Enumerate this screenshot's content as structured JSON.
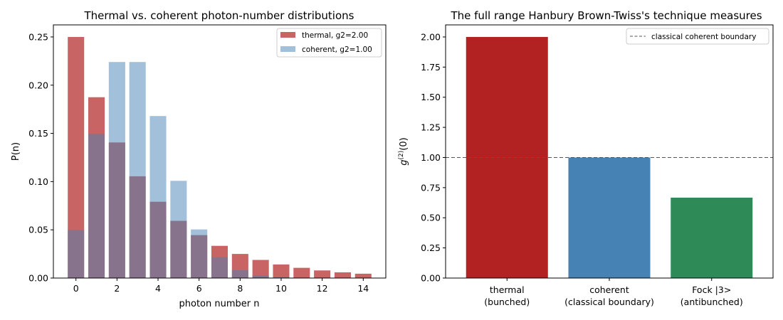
{
  "chart_data": [
    {
      "type": "bar",
      "title": "Thermal vs. coherent photon-number distributions",
      "xlabel": "photon number n",
      "ylabel": "P(n)",
      "xlim": [
        -1.1,
        15.1
      ],
      "ylim": [
        0,
        0.2625
      ],
      "xticks": [
        0,
        2,
        4,
        6,
        8,
        10,
        12,
        14
      ],
      "xtick_labels": [
        "0",
        "2",
        "4",
        "6",
        "8",
        "10",
        "12",
        "14"
      ],
      "yticks": [
        0,
        0.05,
        0.1,
        0.15,
        0.2,
        0.25
      ],
      "ytick_labels": [
        "0.00",
        "0.05",
        "0.10",
        "0.15",
        "0.20",
        "0.25"
      ],
      "x": [
        0,
        1,
        2,
        3,
        4,
        5,
        6,
        7,
        8,
        9,
        10,
        11,
        12,
        13,
        14
      ],
      "legend_position": "top-right",
      "series": [
        {
          "name": "thermal, g2=2.00",
          "color": "#b22222",
          "values": [
            0.25,
            0.1875,
            0.1406,
            0.1055,
            0.0791,
            0.0593,
            0.0445,
            0.0334,
            0.025,
            0.0188,
            0.0141,
            0.0106,
            0.0079,
            0.0059,
            0.0045
          ]
        },
        {
          "name": "coherent, g2=1.00",
          "color": "#4682b4",
          "values": [
            0.0498,
            0.1494,
            0.224,
            0.224,
            0.168,
            0.1008,
            0.0504,
            0.0216,
            0.0081,
            0.0027,
            0.0008,
            0.0002,
            0.0001,
            0.0,
            0.0
          ]
        }
      ]
    },
    {
      "type": "bar",
      "title": "The full range Hanbury Brown-Twiss's technique measures",
      "ylabel": "g(2)(0)",
      "ylabel_parts": {
        "base": "g",
        "sup": "(2)",
        "tail": "(0)"
      },
      "ylim": [
        0,
        2.1
      ],
      "yticks": [
        0,
        0.25,
        0.5,
        0.75,
        1.0,
        1.25,
        1.5,
        1.75,
        2.0
      ],
      "ytick_labels": [
        "0.00",
        "0.25",
        "0.50",
        "0.75",
        "1.00",
        "1.25",
        "1.50",
        "1.75",
        "2.00"
      ],
      "categories": [
        [
          "thermal",
          "(bunched)"
        ],
        [
          "coherent",
          "(classical boundary)"
        ],
        [
          "Fock |3>",
          "(antibunched)"
        ]
      ],
      "values": [
        2.0,
        1.0,
        0.667
      ],
      "colors": [
        "#b22222",
        "#4682b4",
        "#2e8b57"
      ],
      "reference_line": {
        "y": 1.0,
        "style": "dashed",
        "color": "#555555",
        "label": "classical coherent boundary"
      },
      "legend_position": "top-right"
    }
  ]
}
